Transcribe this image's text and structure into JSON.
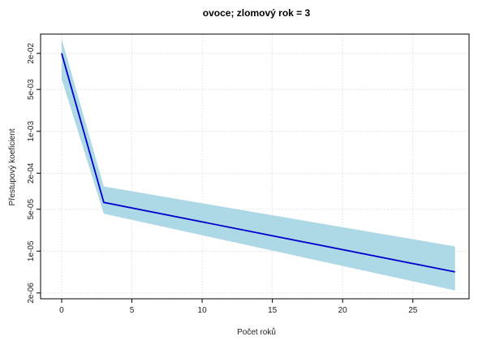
{
  "chart_data": {
    "type": "line",
    "title": "ovoce; zlomový rok = 3",
    "xlabel": "Počet roků",
    "ylabel": "Přestupový koeficient",
    "y_scale": "log",
    "xlim": [
      -1.5,
      29
    ],
    "ylim": [
      1.6e-06,
      0.042
    ],
    "x_ticks": [
      0,
      5,
      10,
      15,
      20,
      25
    ],
    "x_tick_labels": [
      "0",
      "5",
      "10",
      "15",
      "20",
      "25"
    ],
    "y_ticks": [
      2e-06,
      1e-05,
      5e-05,
      0.0002,
      0.001,
      0.005,
      0.02
    ],
    "y_tick_labels": [
      "2e-06",
      "1e-05",
      "5e-05",
      "2e-04",
      "1e-03",
      "5e-03",
      "2e-02"
    ],
    "grid": true,
    "series": [
      {
        "x": [
          0,
          3,
          28
        ],
        "y": [
          0.02,
          6.5e-05,
          4.5e-06
        ],
        "color": "#0000cc"
      }
    ],
    "band": {
      "x": [
        0,
        3,
        28
      ],
      "y_upper": [
        0.035,
        0.00012,
        1.2e-05
      ],
      "y_lower": [
        0.0075,
        4.2e-05,
        2.2e-06
      ],
      "color": "#add8e6"
    }
  }
}
